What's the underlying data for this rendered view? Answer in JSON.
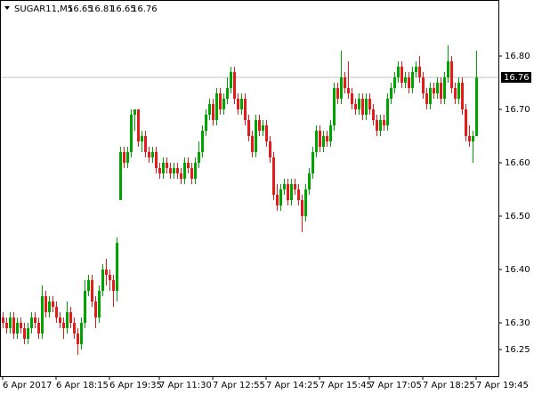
{
  "chart_data": {
    "type": "candlestick",
    "title": "SUGAR11,M5",
    "header_values": [
      16.65,
      16.81,
      16.65,
      16.76
    ],
    "categories": [
      "6 Apr 2017",
      null,
      null,
      null,
      null,
      null,
      null,
      null,
      null,
      null,
      null,
      null,
      null,
      null,
      null,
      "6 Apr 18:15",
      null,
      null,
      null,
      null,
      null,
      null,
      null,
      null,
      null,
      null,
      null,
      null,
      null,
      null,
      "6 Apr 19:35",
      null,
      null,
      null,
      null,
      null,
      null,
      null,
      null,
      null,
      null,
      null,
      null,
      null,
      "7 Apr 11:30",
      null,
      null,
      null,
      null,
      null,
      null,
      null,
      null,
      null,
      null,
      null,
      null,
      null,
      null,
      "7 Apr 12:55",
      null,
      null,
      null,
      null,
      null,
      null,
      null,
      null,
      null,
      null,
      null,
      null,
      null,
      null,
      "7 Apr 14:25",
      null,
      null,
      null,
      null,
      null,
      null,
      null,
      null,
      null,
      null,
      null,
      null,
      null,
      null,
      "7 Apr 15:45",
      null,
      null,
      null,
      null,
      null,
      null,
      null,
      null,
      null,
      null,
      null,
      null,
      null,
      "7 Apr 17:05",
      null,
      null,
      null,
      null,
      null,
      null,
      null,
      null,
      null,
      null,
      null,
      null,
      null,
      null,
      "7 Apr 18:25",
      null,
      null,
      null,
      null,
      null,
      null,
      null,
      null,
      null,
      null,
      null,
      null,
      null,
      null,
      "7 Apr 19:45"
    ],
    "open": [
      16.31,
      16.3,
      16.29,
      16.31,
      16.28,
      16.3,
      16.29,
      16.27,
      16.29,
      16.31,
      16.3,
      16.28,
      16.35,
      16.32,
      16.34,
      16.33,
      16.31,
      16.3,
      16.29,
      16.32,
      16.3,
      16.28,
      16.26,
      16.3,
      16.36,
      16.38,
      16.34,
      16.31,
      16.36,
      16.4,
      16.39,
      16.38,
      16.36,
      16.53,
      16.62,
      16.6,
      16.62,
      16.69,
      16.7,
      16.64,
      16.65,
      16.62,
      16.61,
      16.62,
      16.59,
      16.58,
      16.6,
      16.59,
      16.58,
      16.59,
      16.58,
      16.57,
      16.6,
      16.59,
      16.57,
      16.6,
      16.62,
      16.66,
      16.69,
      16.71,
      16.68,
      16.73,
      16.7,
      16.72,
      16.74,
      16.77,
      16.72,
      16.7,
      16.72,
      16.68,
      16.65,
      16.62,
      16.68,
      16.66,
      16.67,
      16.64,
      16.61,
      16.54,
      16.52,
      16.55,
      16.56,
      16.53,
      16.56,
      16.55,
      16.53,
      16.5,
      16.55,
      16.58,
      16.62,
      16.66,
      16.63,
      16.65,
      16.64,
      16.67,
      16.74,
      16.72,
      16.76,
      16.74,
      16.73,
      16.71,
      16.7,
      16.72,
      16.69,
      16.72,
      16.7,
      16.68,
      16.66,
      16.68,
      16.67,
      16.72,
      16.74,
      16.76,
      16.78,
      16.75,
      16.76,
      16.74,
      16.77,
      16.78,
      16.76,
      16.73,
      16.71,
      16.74,
      16.73,
      16.75,
      16.72,
      16.76,
      16.79,
      16.74,
      16.72,
      16.75,
      16.7,
      16.65,
      16.64,
      16.65
    ],
    "high": [
      16.32,
      16.31,
      16.32,
      16.32,
      16.31,
      16.31,
      16.3,
      16.3,
      16.32,
      16.32,
      16.31,
      16.37,
      16.36,
      16.35,
      16.35,
      16.34,
      16.32,
      16.31,
      16.34,
      16.33,
      16.31,
      16.29,
      16.31,
      16.38,
      16.39,
      16.39,
      16.35,
      16.37,
      16.41,
      16.42,
      16.4,
      16.39,
      16.46,
      16.63,
      16.63,
      16.63,
      16.7,
      16.7,
      16.7,
      16.66,
      16.66,
      16.63,
      16.63,
      16.63,
      16.6,
      16.61,
      16.61,
      16.6,
      16.6,
      16.6,
      16.59,
      16.61,
      16.61,
      16.6,
      16.61,
      16.64,
      16.67,
      16.7,
      16.72,
      16.72,
      16.74,
      16.74,
      16.73,
      16.76,
      16.78,
      16.78,
      16.73,
      16.73,
      16.73,
      16.69,
      16.66,
      16.69,
      16.69,
      16.68,
      16.68,
      16.65,
      16.62,
      16.56,
      16.56,
      16.57,
      16.57,
      16.57,
      16.57,
      16.56,
      16.54,
      16.56,
      16.59,
      16.63,
      16.67,
      16.67,
      16.66,
      16.66,
      16.68,
      16.75,
      16.75,
      16.81,
      16.77,
      16.79,
      16.74,
      16.72,
      16.73,
      16.73,
      16.73,
      16.73,
      16.71,
      16.69,
      16.69,
      16.69,
      16.73,
      16.75,
      16.77,
      16.79,
      16.79,
      16.77,
      16.77,
      16.78,
      16.79,
      16.8,
      16.77,
      16.74,
      16.75,
      16.75,
      16.76,
      16.76,
      16.77,
      16.82,
      16.8,
      16.75,
      16.76,
      16.76,
      16.71,
      16.67,
      16.66,
      16.81
    ],
    "low": [
      16.29,
      16.28,
      16.28,
      16.27,
      16.27,
      16.28,
      16.26,
      16.26,
      16.28,
      16.29,
      16.27,
      16.27,
      16.31,
      16.31,
      16.32,
      16.3,
      16.29,
      16.27,
      16.28,
      16.29,
      16.27,
      16.24,
      16.25,
      16.29,
      16.35,
      16.33,
      16.29,
      16.3,
      16.35,
      16.37,
      16.36,
      16.33,
      16.34,
      16.53,
      16.59,
      16.59,
      16.61,
      16.66,
      16.63,
      16.62,
      16.61,
      16.6,
      16.6,
      16.58,
      16.57,
      16.57,
      16.58,
      16.57,
      16.57,
      16.57,
      16.56,
      16.56,
      16.58,
      16.56,
      16.56,
      16.59,
      16.61,
      16.65,
      16.68,
      16.67,
      16.67,
      16.69,
      16.69,
      16.71,
      16.73,
      16.71,
      16.69,
      16.69,
      16.67,
      16.64,
      16.61,
      16.61,
      16.65,
      16.65,
      16.63,
      16.6,
      16.53,
      16.51,
      16.51,
      16.54,
      16.52,
      16.52,
      16.54,
      16.52,
      16.47,
      16.49,
      16.54,
      16.57,
      16.61,
      16.62,
      16.62,
      16.63,
      16.63,
      16.66,
      16.71,
      16.71,
      16.73,
      16.72,
      16.7,
      16.69,
      16.69,
      16.68,
      16.68,
      16.69,
      16.67,
      16.65,
      16.65,
      16.66,
      16.66,
      16.71,
      16.73,
      16.75,
      16.74,
      16.74,
      16.73,
      16.73,
      16.76,
      16.75,
      16.72,
      16.7,
      16.7,
      16.72,
      16.72,
      16.71,
      16.71,
      16.75,
      16.73,
      16.71,
      16.71,
      16.69,
      16.64,
      16.63,
      16.6,
      16.65
    ],
    "close": [
      16.3,
      16.29,
      16.31,
      16.28,
      16.3,
      16.29,
      16.27,
      16.29,
      16.31,
      16.3,
      16.28,
      16.35,
      16.32,
      16.34,
      16.33,
      16.31,
      16.3,
      16.29,
      16.32,
      16.3,
      16.28,
      16.26,
      16.3,
      16.36,
      16.38,
      16.34,
      16.31,
      16.36,
      16.4,
      16.39,
      16.38,
      16.36,
      16.45,
      16.62,
      16.6,
      16.62,
      16.69,
      16.7,
      16.64,
      16.65,
      16.62,
      16.61,
      16.62,
      16.59,
      16.58,
      16.6,
      16.59,
      16.58,
      16.59,
      16.58,
      16.57,
      16.6,
      16.59,
      16.57,
      16.6,
      16.62,
      16.66,
      16.69,
      16.71,
      16.68,
      16.73,
      16.7,
      16.72,
      16.74,
      16.77,
      16.72,
      16.7,
      16.72,
      16.68,
      16.65,
      16.62,
      16.68,
      16.66,
      16.67,
      16.64,
      16.61,
      16.54,
      16.52,
      16.55,
      16.56,
      16.53,
      16.56,
      16.55,
      16.53,
      16.5,
      16.55,
      16.58,
      16.62,
      16.66,
      16.63,
      16.65,
      16.64,
      16.67,
      16.74,
      16.72,
      16.76,
      16.74,
      16.73,
      16.71,
      16.7,
      16.72,
      16.69,
      16.72,
      16.7,
      16.68,
      16.66,
      16.68,
      16.67,
      16.72,
      16.74,
      16.76,
      16.78,
      16.75,
      16.76,
      16.74,
      16.77,
      16.78,
      16.76,
      16.73,
      16.71,
      16.74,
      16.73,
      16.75,
      16.72,
      16.76,
      16.79,
      16.74,
      16.72,
      16.75,
      16.7,
      16.65,
      16.64,
      16.65,
      16.76
    ],
    "up_color": "#00a400",
    "down_color": "#e31b1b",
    "ylim": [
      16.2,
      16.905
    ],
    "yticks": [
      {
        "value": 16.8,
        "label": "16.80"
      },
      {
        "value": 16.7,
        "label": "16.70"
      },
      {
        "value": 16.6,
        "label": "16.60"
      },
      {
        "value": 16.5,
        "label": "16.50"
      },
      {
        "value": 16.4,
        "label": "16.40"
      },
      {
        "value": 16.3,
        "label": "16.30"
      },
      16.25
    ],
    "current_price": 16.76
  }
}
